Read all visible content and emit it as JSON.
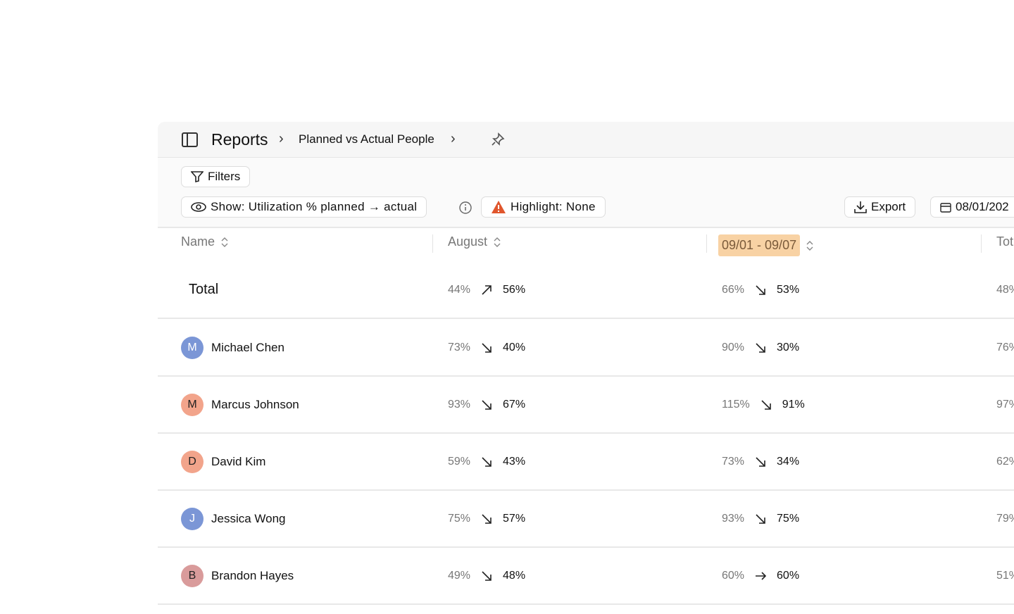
{
  "header": {
    "title": "Reports",
    "breadcrumb": "Planned vs Actual People"
  },
  "toolbar": {
    "filters": "Filters",
    "show": "Show: Utilization % planned → actual",
    "highlight": "Highlight: None",
    "export": "Export",
    "date_range": "08/01/202"
  },
  "table": {
    "columns": [
      "Name",
      "August",
      "09/01 - 09/07",
      "Tot"
    ],
    "rows": [
      {
        "name": "Total",
        "august": [
          "44%",
          "56%"
        ],
        "week": [
          "66%",
          "53%"
        ],
        "total": "48%"
      },
      {
        "name": "Michael Chen",
        "initial": "M",
        "avatar_color": "#7b96d6",
        "august": [
          "73%",
          "40%"
        ],
        "week": [
          "90%",
          "30%"
        ],
        "total": "76%"
      },
      {
        "name": "Marcus Johnson",
        "initial": "M",
        "avatar_color": "#f2a48b",
        "august": [
          "93%",
          "67%"
        ],
        "week": [
          "115%",
          "91%"
        ],
        "total": "97%"
      },
      {
        "name": "David Kim",
        "initial": "D",
        "avatar_color": "#f2a48b",
        "august": [
          "59%",
          "43%"
        ],
        "week": [
          "73%",
          "34%"
        ],
        "total": "62%"
      },
      {
        "name": "Jessica Wong",
        "initial": "J",
        "avatar_color": "#7b96d6",
        "august": [
          "75%",
          "57%"
        ],
        "week": [
          "93%",
          "75%"
        ],
        "total": "79%"
      },
      {
        "name": "Brandon Hayes",
        "initial": "B",
        "avatar_color": "#d99b9b",
        "august": [
          "49%",
          "48%"
        ],
        "week": [
          "60%",
          "60%"
        ],
        "total": "51%"
      }
    ]
  }
}
